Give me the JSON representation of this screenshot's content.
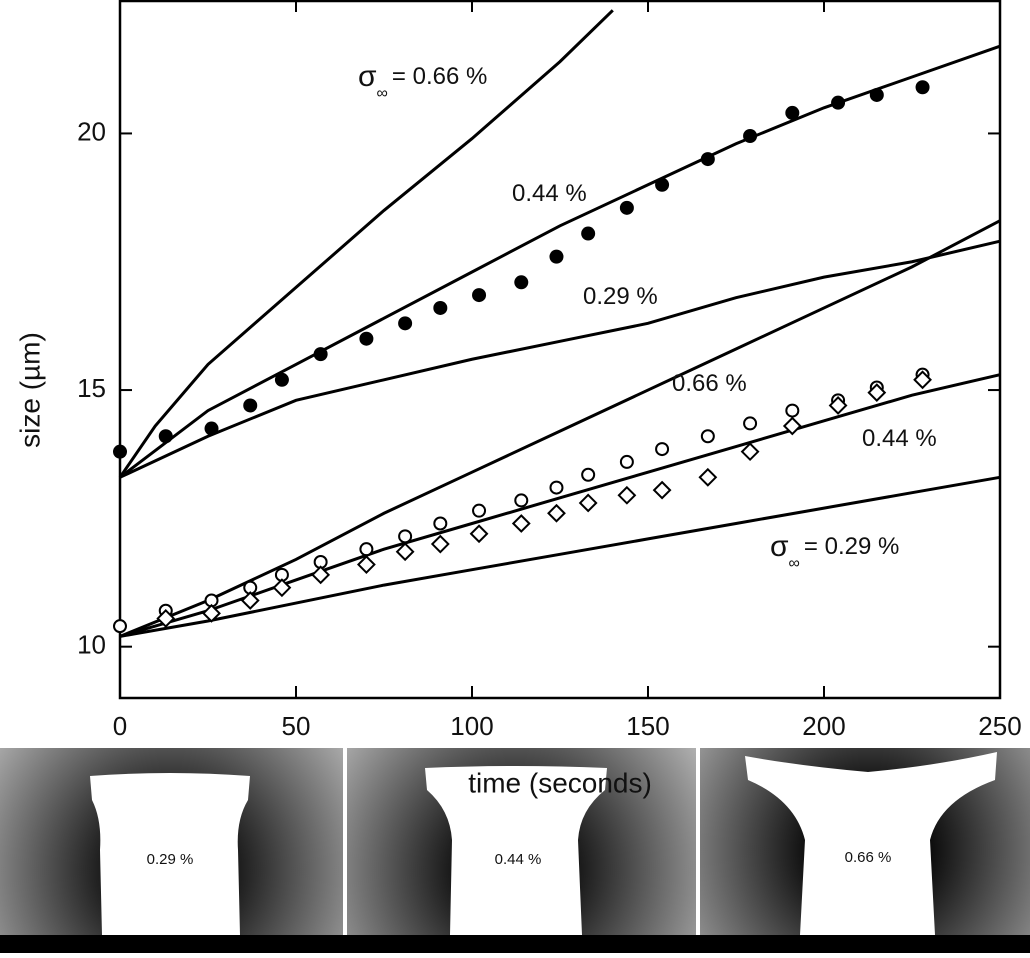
{
  "chart_data": {
    "type": "line",
    "x_label": "time (seconds)",
    "y_label": "size (µm)",
    "xlim": [
      0,
      250
    ],
    "ylim": [
      9,
      22.6
    ],
    "xticks": [
      0,
      50,
      100,
      150,
      200,
      250
    ],
    "yticks": [
      10,
      15,
      20
    ],
    "color": "#000000",
    "series": [
      {
        "mode": "line",
        "x": [
          0,
          10,
          25,
          50,
          75,
          100,
          125,
          140
        ],
        "values": [
          13.3,
          14.3,
          15.5,
          17.0,
          18.5,
          19.9,
          21.4,
          22.4
        ]
      },
      {
        "mode": "line",
        "x": [
          0,
          25,
          50,
          75,
          100,
          125,
          150,
          175,
          200,
          225,
          250
        ],
        "values": [
          13.3,
          14.6,
          15.5,
          16.4,
          17.3,
          18.2,
          19.0,
          19.8,
          20.5,
          21.1,
          21.7
        ]
      },
      {
        "mode": "line",
        "x": [
          0,
          25,
          50,
          75,
          100,
          125,
          150,
          175,
          200,
          225,
          250
        ],
        "values": [
          13.3,
          14.1,
          14.8,
          15.2,
          15.6,
          15.95,
          16.3,
          16.8,
          17.2,
          17.5,
          17.9
        ]
      },
      {
        "mode": "line",
        "x": [
          0,
          25,
          50,
          75,
          100,
          125,
          150,
          175,
          200,
          225,
          250
        ],
        "values": [
          10.2,
          10.9,
          11.7,
          12.6,
          13.4,
          14.2,
          15.0,
          15.8,
          16.6,
          17.4,
          18.3
        ]
      },
      {
        "mode": "line",
        "x": [
          0,
          25,
          50,
          75,
          100,
          125,
          150,
          175,
          200,
          225,
          250
        ],
        "values": [
          10.2,
          10.7,
          11.3,
          11.9,
          12.4,
          12.9,
          13.4,
          13.9,
          14.4,
          14.9,
          15.3
        ]
      },
      {
        "mode": "line",
        "x": [
          0,
          25,
          50,
          75,
          100,
          125,
          150,
          175,
          200,
          225,
          250
        ],
        "values": [
          10.2,
          10.5,
          10.85,
          11.2,
          11.5,
          11.8,
          12.1,
          12.4,
          12.7,
          13.0,
          13.3
        ]
      },
      {
        "mode": "markers",
        "marker": "filled-circle",
        "x": [
          0,
          13,
          26,
          37,
          46,
          57,
          70,
          81,
          91,
          102,
          114,
          124,
          133,
          144,
          154,
          167,
          179,
          191,
          204,
          215,
          228
        ],
        "values": [
          13.8,
          14.1,
          14.25,
          14.7,
          15.2,
          15.7,
          16.0,
          16.3,
          16.6,
          16.85,
          17.1,
          17.6,
          18.05,
          18.55,
          19.0,
          19.5,
          19.95,
          20.4,
          20.6,
          20.75,
          20.9
        ]
      },
      {
        "mode": "markers",
        "marker": "open-circle",
        "x": [
          0,
          13,
          26,
          37,
          46,
          57,
          70,
          81,
          91,
          102,
          114,
          124,
          133,
          144,
          154,
          167,
          179,
          191,
          204,
          215,
          228
        ],
        "values": [
          10.4,
          10.7,
          10.9,
          11.15,
          11.4,
          11.65,
          11.9,
          12.15,
          12.4,
          12.65,
          12.85,
          13.1,
          13.35,
          13.6,
          13.85,
          14.1,
          14.35,
          14.6,
          14.8,
          15.05,
          15.3
        ]
      },
      {
        "mode": "markers",
        "marker": "diamond",
        "x": [
          13,
          26,
          37,
          46,
          57,
          70,
          81,
          91,
          102,
          114,
          124,
          133,
          144,
          154,
          167,
          179,
          191,
          204,
          215,
          228
        ],
        "values": [
          10.55,
          10.65,
          10.9,
          11.15,
          11.4,
          11.6,
          11.85,
          12.0,
          12.2,
          12.4,
          12.6,
          12.8,
          12.95,
          13.05,
          13.3,
          13.8,
          14.3,
          14.7,
          14.95,
          15.2
        ]
      }
    ],
    "annotations": [
      {
        "symbol": "σ",
        "subscript": "∞",
        "text": "= 0.66 %"
      },
      {
        "text": "0.44 %"
      },
      {
        "text": "0.29 %"
      },
      {
        "text": "0.66 %"
      },
      {
        "text": "0.44 %"
      },
      {
        "symbol": "σ",
        "subscript": "∞",
        "text": "= 0.29 %"
      }
    ]
  },
  "images": [
    {
      "label": "0.29 %"
    },
    {
      "label": "0.44 %"
    },
    {
      "label": "0.66 %"
    }
  ]
}
